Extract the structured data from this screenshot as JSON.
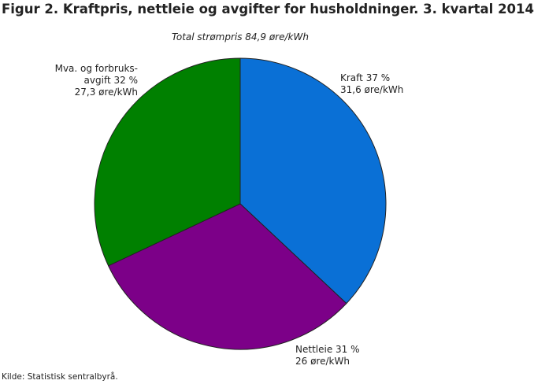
{
  "chart_data": {
    "type": "pie",
    "title": "Figur 2. Kraftpris, nettleie og avgifter for husholdninger. 3. kvartal 2014",
    "subtitle": "Total strømpris 84,9 øre/kWh",
    "categories": [
      "Kraft",
      "Nettleie",
      "Mva. og forbruks-avgift"
    ],
    "values": [
      37,
      31,
      32
    ],
    "value_labels": [
      "37 %",
      "31 %",
      "32 %"
    ],
    "price_labels": [
      "31,6 øre/kWh",
      "26 øre/kWh",
      "27,3 øre/kWh"
    ],
    "colors": [
      "#0a70d6",
      "#7c0088",
      "#008000"
    ],
    "source": "Kilde: Statistisk sentralbyrå."
  }
}
